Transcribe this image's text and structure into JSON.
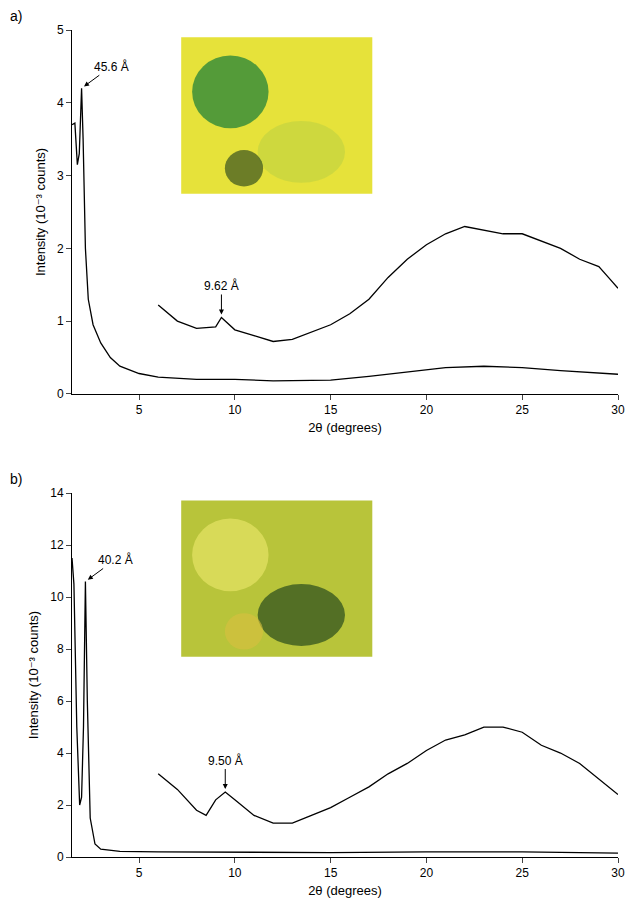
{
  "chart_data": [
    {
      "type": "line",
      "title": "a)",
      "x_label": "2θ (degrees)",
      "y_label": "Intensity (10⁻³ counts)",
      "xlim": [
        1.5,
        30
      ],
      "xticks": [
        5,
        10,
        15,
        20,
        25,
        30
      ],
      "ylim": [
        0,
        5
      ],
      "yticks": [
        0,
        1,
        2,
        3,
        4,
        5
      ],
      "grid": false,
      "series": [
        {
          "color": "#000000",
          "x": [
            1.5,
            1.65,
            1.78,
            1.88,
            2.0,
            2.08,
            2.2,
            2.35,
            2.6,
            3.0,
            3.5,
            4.0,
            5.0,
            6.0,
            8.0,
            10.0,
            12.0,
            15.0,
            17.0,
            19.0,
            21.0,
            23.0,
            25.0,
            27.0,
            28.0,
            30.0
          ],
          "values": [
            3.7,
            3.72,
            3.15,
            3.3,
            4.2,
            3.5,
            2.0,
            1.3,
            0.95,
            0.7,
            0.5,
            0.38,
            0.28,
            0.23,
            0.2,
            0.2,
            0.18,
            0.19,
            0.24,
            0.3,
            0.36,
            0.38,
            0.36,
            0.32,
            0.3,
            0.27
          ]
        },
        {
          "color": "#000000",
          "x": [
            6,
            7,
            8,
            9,
            9.3,
            10,
            11,
            12,
            13,
            14,
            15,
            16,
            17,
            18,
            19,
            20,
            21,
            22,
            23,
            24,
            25,
            26,
            27,
            28,
            29,
            29.5,
            30
          ],
          "values": [
            1.22,
            1.0,
            0.9,
            0.92,
            1.05,
            0.88,
            0.8,
            0.72,
            0.75,
            0.85,
            0.95,
            1.1,
            1.3,
            1.6,
            1.85,
            2.05,
            2.2,
            2.3,
            2.25,
            2.2,
            2.2,
            2.1,
            2.0,
            1.85,
            1.75,
            1.6,
            1.45
          ]
        }
      ],
      "annotations": [
        {
          "text": "45.6 Å",
          "x": 2.0,
          "y": 4.2
        },
        {
          "text": "9.62 Å",
          "x": 9.3,
          "y": 1.05
        }
      ]
    },
    {
      "type": "line",
      "title": "b)",
      "x_label": "2θ (degrees)",
      "y_label": "Intensity (10⁻³ counts)",
      "xlim": [
        1.5,
        30
      ],
      "xticks": [
        5,
        10,
        15,
        20,
        25,
        30
      ],
      "ylim": [
        0,
        14
      ],
      "yticks": [
        0,
        2,
        4,
        6,
        8,
        10,
        12,
        14
      ],
      "grid": false,
      "series": [
        {
          "color": "#000000",
          "x": [
            1.5,
            1.6,
            1.75,
            1.9,
            2.0,
            2.1,
            2.2,
            2.3,
            2.45,
            2.7,
            3.0,
            4.0,
            6.0,
            10.0,
            15.0,
            20.0,
            25.0,
            30.0
          ],
          "values": [
            11.5,
            10.5,
            5.0,
            2.0,
            2.3,
            5.0,
            10.6,
            6.0,
            1.5,
            0.5,
            0.3,
            0.22,
            0.2,
            0.18,
            0.17,
            0.2,
            0.2,
            0.15
          ]
        },
        {
          "color": "#000000",
          "x": [
            6,
            7,
            8,
            8.5,
            9,
            9.5,
            10,
            11,
            12,
            13,
            14,
            15,
            16,
            17,
            18,
            19,
            20,
            21,
            22,
            23,
            24,
            25,
            26,
            27,
            28,
            29,
            30
          ],
          "values": [
            3.2,
            2.6,
            1.8,
            1.6,
            2.2,
            2.5,
            2.2,
            1.6,
            1.3,
            1.3,
            1.6,
            1.9,
            2.3,
            2.7,
            3.2,
            3.6,
            4.1,
            4.5,
            4.7,
            5.0,
            5.0,
            4.8,
            4.3,
            4.0,
            3.6,
            3.0,
            2.4
          ]
        }
      ],
      "annotations": [
        {
          "text": "40.2 Å",
          "x": 2.2,
          "y": 10.6
        },
        {
          "text": "9.50 Å",
          "x": 9.5,
          "y": 2.5
        }
      ]
    }
  ]
}
